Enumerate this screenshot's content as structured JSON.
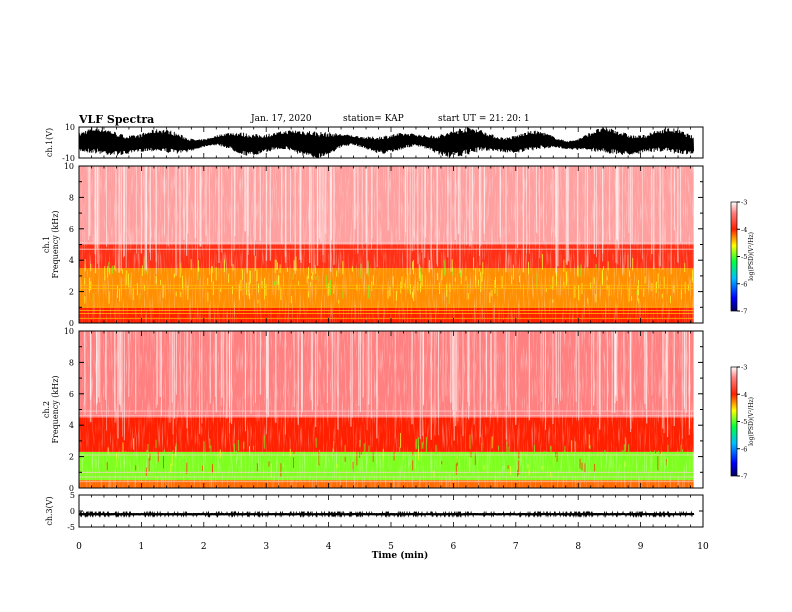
{
  "header": {
    "title": "VLF Spectra",
    "date": "Jan. 17, 2020",
    "station": "station= KAP",
    "start": "start UT =  21: 20: 1"
  },
  "chart_data": [
    {
      "type": "line",
      "ylabel": "ch.1(V)",
      "ylim": [
        -10,
        10
      ],
      "yticks": [
        "10",
        "-10"
      ],
      "xlim": [
        0,
        10
      ],
      "series": [
        {
          "values": "broadband voltage waveform, oscillating approx. between -10 and 10 V over 0 to 9.85 min"
        }
      ]
    },
    {
      "type": "heatmap",
      "ylabel": "ch.1 Frequency (kHz)",
      "ylim": [
        0,
        10
      ],
      "yticks": [
        "0",
        "2",
        "4",
        "6",
        "8",
        "10"
      ],
      "xlim": [
        0,
        10
      ],
      "bands": [
        {
          "freq_khz": [
            0,
            1
          ],
          "level": -4
        },
        {
          "freq_khz": [
            1,
            3.5
          ],
          "level": -4.3
        },
        {
          "freq_khz": [
            3.5,
            5
          ],
          "level": -3.9
        },
        {
          "freq_khz": [
            5,
            10
          ],
          "level": -3.3
        }
      ],
      "colorbar": {
        "label": "log(PSD)(V²/Hz)",
        "range": [
          -7,
          -3
        ],
        "ticks": [
          "-3",
          "-4",
          "-5",
          "-6",
          "-7"
        ]
      }
    },
    {
      "type": "heatmap",
      "ylabel": "ch.2 Frequency (kHz)",
      "ylim": [
        0,
        10
      ],
      "yticks": [
        "0",
        "2",
        "4",
        "6",
        "8",
        "10"
      ],
      "xlim": [
        0,
        10
      ],
      "bands": [
        {
          "freq_khz": [
            0,
            0.5
          ],
          "level": -4.2
        },
        {
          "freq_khz": [
            0.5,
            2.3
          ],
          "level": -4.9
        },
        {
          "freq_khz": [
            2.3,
            4.5
          ],
          "level": -4
        },
        {
          "freq_khz": [
            4.5,
            10
          ],
          "level": -3.4
        }
      ],
      "colorbar": {
        "label": "log(PSD)(V²/Hz)",
        "range": [
          -7,
          -3
        ],
        "ticks": [
          "-3",
          "-4",
          "-5",
          "-6",
          "-7"
        ]
      }
    },
    {
      "type": "line",
      "ylabel": "ch.3(V)",
      "ylim": [
        -5,
        5
      ],
      "yticks": [
        "5",
        "0",
        "-5"
      ],
      "xlim": [
        0,
        10
      ],
      "series": [
        {
          "values": "near-constant signal around -1 V with small ripple over 0 to 9.85 min"
        }
      ]
    }
  ],
  "xaxis": {
    "label": "Time (min)",
    "ticks": [
      "0",
      "1",
      "2",
      "3",
      "4",
      "5",
      "6",
      "7",
      "8",
      "9",
      "10"
    ]
  }
}
